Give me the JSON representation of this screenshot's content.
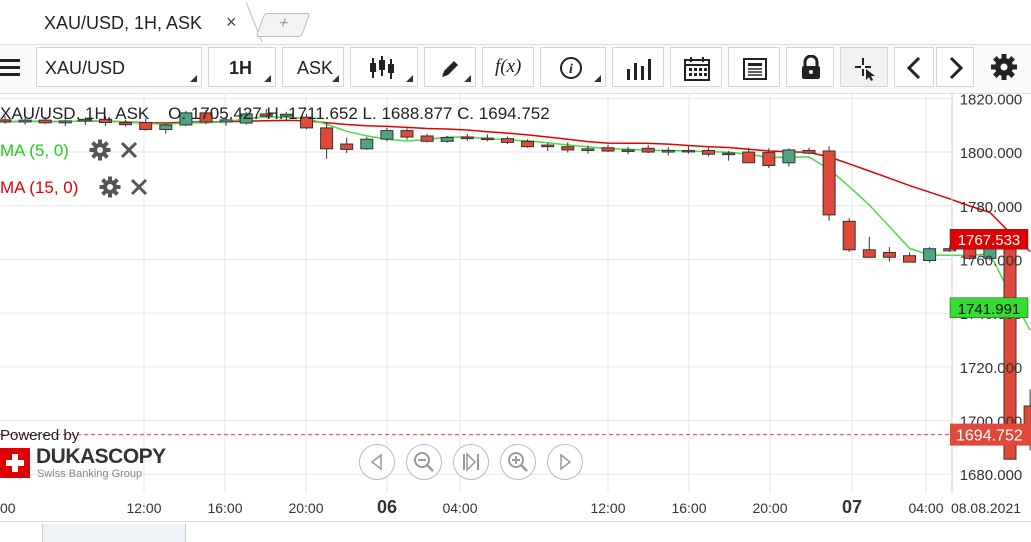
{
  "tab": {
    "title": "XAU/USD, 1H, ASK",
    "close": "×",
    "add": "+"
  },
  "toolbar": {
    "instrument": "XAU/USD",
    "period": "1H",
    "side": "ASK",
    "function_label": "f(x)",
    "icons": [
      "menu-icon",
      "candlestick-icon",
      "pencil-icon",
      "function-icon",
      "info-icon",
      "bar-chart-icon",
      "calendar-icon",
      "news-icon",
      "lock-icon",
      "crosshair-icon",
      "chevron-left-icon",
      "chevron-right-icon",
      "gear-icon"
    ]
  },
  "legend": {
    "ohlc": "XAU/USD, 1H, ASK    O. 1705.427 H. 1711.652 L. 1688.877 C. 1694.752",
    "ma1": "MA (5, 0)",
    "ma2": "MA (15, 0)"
  },
  "brand": {
    "powered": "Powered by",
    "name": "DUKASCOPY",
    "sub": "Swiss Banking Group"
  },
  "chart_data": {
    "type": "candlestick",
    "title": "XAU/USD, 1H, ASK",
    "y_ticks": [
      "1820.000",
      "1800.000",
      "1780.000",
      "1760.000",
      "1740.000",
      "1720.000",
      "1700.000",
      "1680.000"
    ],
    "ylim": [
      1673,
      1822
    ],
    "x_ticks": [
      {
        "label": "00",
        "bold": false
      },
      {
        "label": "12:00",
        "bold": false
      },
      {
        "label": "16:00",
        "bold": false
      },
      {
        "label": "20:00",
        "bold": false
      },
      {
        "label": "06",
        "bold": true
      },
      {
        "label": "04:00",
        "bold": false
      },
      {
        "label": "12:00",
        "bold": false
      },
      {
        "label": "16:00",
        "bold": false
      },
      {
        "label": "20:00",
        "bold": false
      },
      {
        "label": "07",
        "bold": true
      },
      {
        "label": "04:00",
        "bold": false
      },
      {
        "label": "08.08.2021",
        "bold": false
      }
    ],
    "grid": true,
    "current_price": "1694.752",
    "badges": [
      {
        "label": "1767.533",
        "value": 1767.533,
        "color": "#e00000"
      },
      {
        "label": "1741.991",
        "value": 1741.991,
        "color": "#33dd33"
      }
    ],
    "candles": [
      {
        "o": 1812.0,
        "h": 1813.5,
        "l": 1810.6,
        "c": 1811.2
      },
      {
        "o": 1811.2,
        "h": 1812.8,
        "l": 1810.2,
        "c": 1811.9
      },
      {
        "o": 1811.9,
        "h": 1813.0,
        "l": 1810.4,
        "c": 1810.9
      },
      {
        "o": 1810.9,
        "h": 1812.2,
        "l": 1809.6,
        "c": 1811.6
      },
      {
        "o": 1811.6,
        "h": 1813.0,
        "l": 1810.1,
        "c": 1812.2
      },
      {
        "o": 1812.2,
        "h": 1813.4,
        "l": 1809.8,
        "c": 1811.0
      },
      {
        "o": 1811.0,
        "h": 1812.0,
        "l": 1809.5,
        "c": 1810.2
      },
      {
        "o": 1811.0,
        "h": 1812.5,
        "l": 1808.0,
        "c": 1808.4
      },
      {
        "o": 1808.4,
        "h": 1810.6,
        "l": 1806.8,
        "c": 1810.1
      },
      {
        "o": 1810.1,
        "h": 1815.4,
        "l": 1809.6,
        "c": 1814.6
      },
      {
        "o": 1814.6,
        "h": 1815.6,
        "l": 1810.4,
        "c": 1811.2
      },
      {
        "o": 1811.2,
        "h": 1813.0,
        "l": 1809.8,
        "c": 1812.0
      },
      {
        "o": 1810.8,
        "h": 1815.0,
        "l": 1810.2,
        "c": 1814.2
      },
      {
        "o": 1814.2,
        "h": 1816.0,
        "l": 1812.8,
        "c": 1813.4
      },
      {
        "o": 1813.4,
        "h": 1815.0,
        "l": 1811.8,
        "c": 1814.1
      },
      {
        "o": 1813.0,
        "h": 1814.2,
        "l": 1808.5,
        "c": 1809.0
      },
      {
        "o": 1809.0,
        "h": 1811.0,
        "l": 1797.5,
        "c": 1801.2
      },
      {
        "o": 1803.0,
        "h": 1805.4,
        "l": 1799.6,
        "c": 1801.0
      },
      {
        "o": 1801.2,
        "h": 1805.6,
        "l": 1800.8,
        "c": 1804.8
      },
      {
        "o": 1804.8,
        "h": 1809.0,
        "l": 1804.0,
        "c": 1808.0
      },
      {
        "o": 1808.0,
        "h": 1808.8,
        "l": 1804.6,
        "c": 1805.6
      },
      {
        "o": 1806.0,
        "h": 1806.8,
        "l": 1803.6,
        "c": 1804.0
      },
      {
        "o": 1804.0,
        "h": 1806.0,
        "l": 1803.5,
        "c": 1805.4
      },
      {
        "o": 1805.6,
        "h": 1806.8,
        "l": 1804.2,
        "c": 1805.0
      },
      {
        "o": 1805.2,
        "h": 1806.6,
        "l": 1804.0,
        "c": 1804.8
      },
      {
        "o": 1805.0,
        "h": 1805.8,
        "l": 1803.0,
        "c": 1803.6
      },
      {
        "o": 1804.0,
        "h": 1804.8,
        "l": 1801.6,
        "c": 1802.0
      },
      {
        "o": 1802.6,
        "h": 1803.4,
        "l": 1800.4,
        "c": 1802.0
      },
      {
        "o": 1802.0,
        "h": 1803.6,
        "l": 1799.8,
        "c": 1800.8
      },
      {
        "o": 1800.6,
        "h": 1802.4,
        "l": 1799.4,
        "c": 1801.2
      },
      {
        "o": 1801.6,
        "h": 1802.8,
        "l": 1800.0,
        "c": 1800.4
      },
      {
        "o": 1800.4,
        "h": 1802.0,
        "l": 1799.2,
        "c": 1800.8
      },
      {
        "o": 1801.4,
        "h": 1802.6,
        "l": 1799.6,
        "c": 1800.0
      },
      {
        "o": 1800.0,
        "h": 1801.8,
        "l": 1798.8,
        "c": 1800.6
      },
      {
        "o": 1800.6,
        "h": 1802.2,
        "l": 1799.4,
        "c": 1800.2
      },
      {
        "o": 1800.6,
        "h": 1801.6,
        "l": 1798.4,
        "c": 1799.2
      },
      {
        "o": 1799.2,
        "h": 1800.4,
        "l": 1796.8,
        "c": 1799.6
      },
      {
        "o": 1800.0,
        "h": 1801.6,
        "l": 1796.6,
        "c": 1796.0
      },
      {
        "o": 1799.8,
        "h": 1801.4,
        "l": 1794.0,
        "c": 1795.0
      },
      {
        "o": 1796.0,
        "h": 1801.4,
        "l": 1794.6,
        "c": 1800.8
      },
      {
        "o": 1800.6,
        "h": 1801.6,
        "l": 1799.2,
        "c": 1799.6
      },
      {
        "o": 1800.4,
        "h": 1802.2,
        "l": 1774.4,
        "c": 1776.6
      },
      {
        "o": 1774.2,
        "h": 1775.4,
        "l": 1762.8,
        "c": 1763.6
      },
      {
        "o": 1763.6,
        "h": 1768.4,
        "l": 1760.6,
        "c": 1760.8
      },
      {
        "o": 1762.6,
        "h": 1764.6,
        "l": 1759.2,
        "c": 1760.8
      },
      {
        "o": 1761.4,
        "h": 1762.6,
        "l": 1758.8,
        "c": 1759.0
      },
      {
        "o": 1759.6,
        "h": 1764.6,
        "l": 1758.8,
        "c": 1764.0
      },
      {
        "o": 1764.0,
        "h": 1765.2,
        "l": 1762.8,
        "c": 1763.2
      },
      {
        "o": 1764.0,
        "h": 1764.8,
        "l": 1759.8,
        "c": 1760.4
      },
      {
        "o": 1760.4,
        "h": 1764.6,
        "l": 1759.6,
        "c": 1764.0
      },
      {
        "o": 1764.6,
        "h": 1765.6,
        "l": 1686.0,
        "c": 1685.6
      },
      {
        "o": 1705.4,
        "h": 1711.6,
        "l": 1688.9,
        "c": 1694.8
      }
    ]
  }
}
